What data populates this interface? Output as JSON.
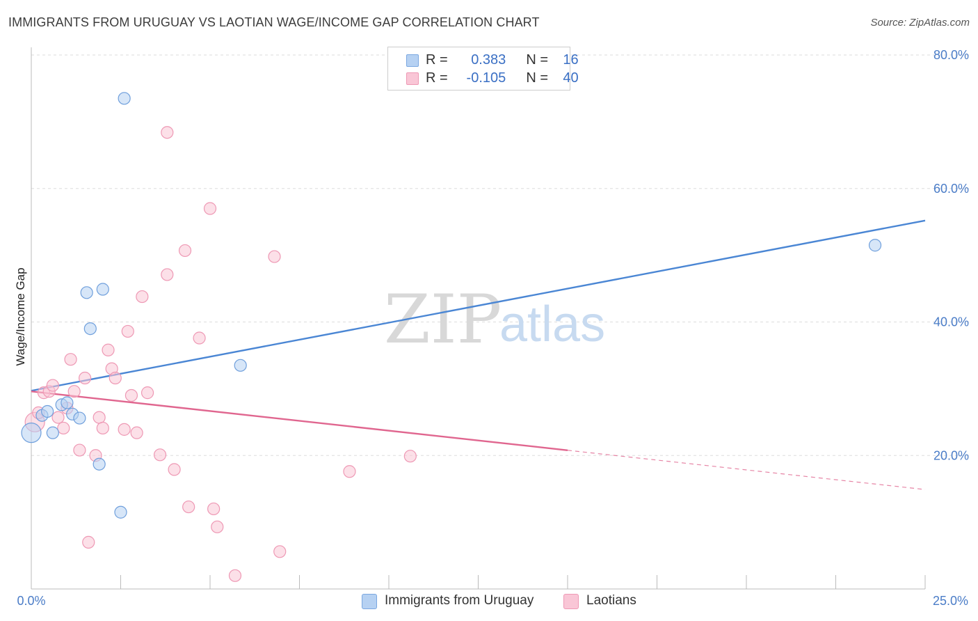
{
  "header": {
    "title": "IMMIGRANTS FROM URUGUAY VS LAOTIAN WAGE/INCOME GAP CORRELATION CHART",
    "source": "Source: ZipAtlas.com"
  },
  "watermark": {
    "zip": "ZIP",
    "atlas": "atlas"
  },
  "legend": {
    "r_label": "R =",
    "n_label": "N =",
    "series": [
      {
        "name": "Immigrants from Uruguay",
        "r": "0.383",
        "n": "16",
        "fill": "#b6d1f2",
        "stroke": "#7aa7e0"
      },
      {
        "name": "Laotians",
        "r": "-0.105",
        "n": "40",
        "fill": "#f9c6d6",
        "stroke": "#ee98b4"
      }
    ]
  },
  "chart_data": {
    "type": "scatter",
    "title": "IMMIGRANTS FROM URUGUAY VS LAOTIAN WAGE/INCOME GAP CORRELATION CHART",
    "xlabel": "",
    "ylabel": "Wage/Income Gap",
    "xlim": [
      0,
      25
    ],
    "ylim": [
      0,
      80
    ],
    "x_tick_labels": [
      "0.0%",
      "25.0%"
    ],
    "y_ticks": [
      20,
      40,
      60,
      80
    ],
    "y_tick_labels": [
      "20.0%",
      "40.0%",
      "60.0%",
      "80.0%"
    ],
    "grid": true,
    "legend_position": "top-center",
    "series": [
      {
        "name": "Immigrants from Uruguay",
        "color": "#4a86d4",
        "point_fill": "#b6d1f2",
        "point_stroke": "#6f9fdc",
        "points": [
          [
            0.0,
            23.4,
            "large"
          ],
          [
            0.3,
            26.0
          ],
          [
            0.45,
            26.6
          ],
          [
            0.6,
            23.4
          ],
          [
            0.85,
            27.6
          ],
          [
            1.0,
            27.9
          ],
          [
            1.15,
            26.2
          ],
          [
            1.35,
            25.6
          ],
          [
            1.55,
            44.4
          ],
          [
            1.65,
            39.0
          ],
          [
            1.9,
            18.7
          ],
          [
            2.0,
            44.9
          ],
          [
            2.5,
            11.5
          ],
          [
            2.6,
            73.5
          ],
          [
            5.85,
            33.5
          ],
          [
            23.6,
            51.5
          ]
        ],
        "trend": {
          "x0": 0.0,
          "y0": 29.7,
          "x1": 25.0,
          "y1": 55.2,
          "solid_until": 25.0
        }
      },
      {
        "name": "Laotians",
        "color": "#e0668f",
        "point_fill": "#f9c6d6",
        "point_stroke": "#ee98b4",
        "points": [
          [
            0.1,
            25.0,
            "large"
          ],
          [
            0.2,
            26.4
          ],
          [
            0.35,
            29.4
          ],
          [
            0.5,
            29.6
          ],
          [
            0.6,
            30.5
          ],
          [
            0.75,
            25.7
          ],
          [
            0.9,
            24.1
          ],
          [
            1.0,
            27.1
          ],
          [
            1.1,
            34.4
          ],
          [
            1.2,
            29.6
          ],
          [
            1.35,
            20.8
          ],
          [
            1.5,
            31.6
          ],
          [
            1.6,
            7.0
          ],
          [
            1.8,
            20.0
          ],
          [
            1.9,
            25.7
          ],
          [
            2.0,
            24.1
          ],
          [
            2.15,
            35.8
          ],
          [
            2.25,
            33.0
          ],
          [
            2.35,
            31.6
          ],
          [
            2.6,
            23.9
          ],
          [
            2.7,
            38.6
          ],
          [
            2.8,
            29.0
          ],
          [
            2.95,
            23.4
          ],
          [
            3.1,
            43.8
          ],
          [
            3.25,
            29.4
          ],
          [
            3.6,
            20.1
          ],
          [
            3.8,
            68.4
          ],
          [
            3.8,
            47.1
          ],
          [
            4.0,
            17.9
          ],
          [
            4.3,
            50.7
          ],
          [
            4.4,
            12.3
          ],
          [
            4.7,
            37.6
          ],
          [
            5.0,
            57.0
          ],
          [
            5.1,
            12.0
          ],
          [
            5.2,
            9.3
          ],
          [
            5.7,
            2.0
          ],
          [
            6.8,
            49.8
          ],
          [
            6.95,
            5.6
          ],
          [
            8.9,
            17.6
          ],
          [
            10.6,
            19.9
          ]
        ],
        "trend": {
          "x0": 0.0,
          "y0": 29.6,
          "x1": 25.0,
          "y1": 14.9,
          "solid_until": 15.0
        }
      }
    ]
  }
}
